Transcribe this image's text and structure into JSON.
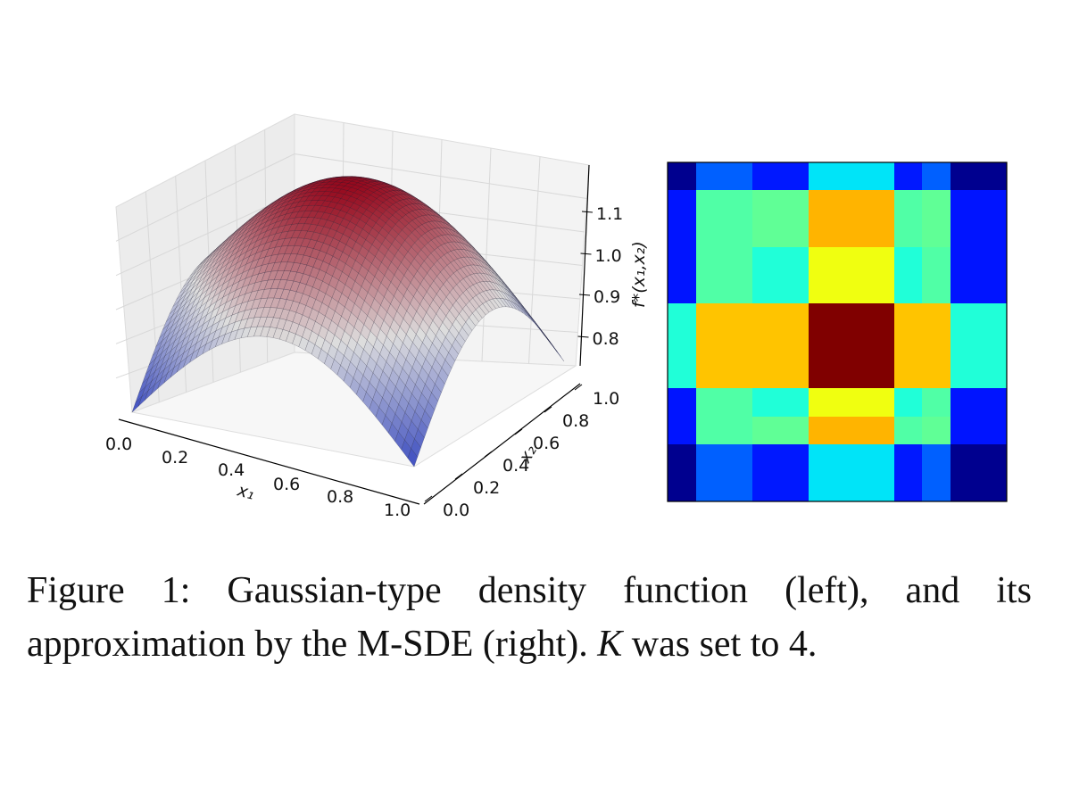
{
  "figure": {
    "left": {
      "x1_ticks": [
        "0.0",
        "0.2",
        "0.4",
        "0.6",
        "0.8",
        "1.0"
      ],
      "x2_ticks": [
        "0.0",
        "0.2",
        "0.4",
        "0.6",
        "0.8",
        "1.0"
      ],
      "z_ticks": [
        "1.1",
        "1.0",
        "0.9",
        "0.8"
      ],
      "x1_label": "x₁",
      "x2_label": "x₂",
      "z_label": "f*(x₁,x₂)"
    },
    "right": {
      "colors": [
        [
          "#00008f",
          "#0060ff",
          "#0018ff",
          "#00e4f8",
          "#0018ff",
          "#0060ff",
          "#00008f"
        ],
        [
          "#0014ff",
          "#50ffa6",
          "#60ff96",
          "#ffb400",
          "#50ffa6",
          "#60ff96",
          "#0014ff"
        ],
        [
          "#0014ff",
          "#50ffa6",
          "#20ffd8",
          "#f0ff10",
          "#20ffd8",
          "#50ffa6",
          "#0014ff"
        ],
        [
          "#20ffd8",
          "#ffc400",
          "#ffc400",
          "#800000",
          "#ffc400",
          "#ffc400",
          "#20ffd8"
        ],
        [
          "#0014ff",
          "#50ffa6",
          "#20ffd8",
          "#f0ff10",
          "#20ffd8",
          "#50ffa6",
          "#0014ff"
        ],
        [
          "#0014ff",
          "#50ffa6",
          "#60ff96",
          "#ffb400",
          "#50ffa6",
          "#60ff96",
          "#0014ff"
        ],
        [
          "#00008f",
          "#0060ff",
          "#0018ff",
          "#00e4f8",
          "#0018ff",
          "#0060ff",
          "#00008f"
        ]
      ]
    },
    "caption": {
      "line1": "Figure 1:  Gaussian-type density function (left), and its",
      "line2": [
        "approximation by the M-SDE (right). ",
        "K",
        " was set to ",
        "4."
      ]
    }
  }
}
